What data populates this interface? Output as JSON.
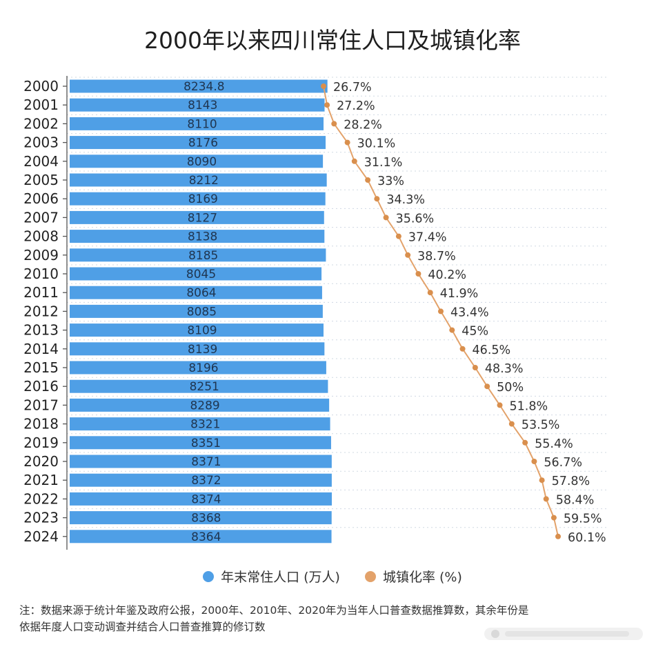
{
  "title": "2000年以来四川常住人口及城镇化率",
  "legend": {
    "population": "年末常住人口 (万人)",
    "urbanization": "城镇化率 (%)"
  },
  "note": {
    "line1": "注：数据来源于统计年鉴及政府公报，2000年、2010年、2020年为当年人口普查数据推算数，其余年份是",
    "line2": "依据年度人口变动调查并结合人口普查推算的修订数"
  },
  "colors": {
    "bar": "#4f9fe6",
    "bar_label": "#1f3550",
    "line": "#e3a26a",
    "dot": "#d98f4d",
    "axis": "#555555",
    "grid": "#cfd8e2"
  },
  "chart_data": {
    "type": "bar",
    "orientation": "horizontal",
    "title": "2000年以来四川常住人口及城镇化率",
    "categories": [
      "2000",
      "2001",
      "2002",
      "2003",
      "2004",
      "2005",
      "2006",
      "2007",
      "2008",
      "2009",
      "2010",
      "2011",
      "2012",
      "2013",
      "2014",
      "2015",
      "2016",
      "2017",
      "2018",
      "2019",
      "2020",
      "2021",
      "2022",
      "2023",
      "2024"
    ],
    "series": [
      {
        "name": "年末常住人口 (万人)",
        "type": "bar",
        "values": [
          8234.8,
          8143,
          8110,
          8176,
          8090,
          8212,
          8169,
          8127,
          8138,
          8185,
          8045,
          8064,
          8085,
          8109,
          8139,
          8196,
          8251,
          8289,
          8321,
          8351,
          8371,
          8372,
          8374,
          8368,
          8364
        ],
        "labels": [
          "8234.8",
          "8143",
          "8110",
          "8176",
          "8090",
          "8212",
          "8169",
          "8127",
          "8138",
          "8185",
          "8045",
          "8064",
          "8085",
          "8109",
          "8139",
          "8196",
          "8251",
          "8289",
          "8321",
          "8351",
          "8371",
          "8372",
          "8374",
          "8368",
          "8364"
        ]
      },
      {
        "name": "城镇化率 (%)",
        "type": "line",
        "values": [
          26.7,
          27.2,
          28.2,
          30.1,
          31.1,
          33,
          34.3,
          35.6,
          37.4,
          38.7,
          40.2,
          41.9,
          43.4,
          45,
          46.5,
          48.3,
          50,
          51.8,
          53.5,
          55.4,
          56.7,
          57.8,
          58.4,
          59.5,
          60.1
        ],
        "labels": [
          "26.7%",
          "27.2%",
          "28.2%",
          "30.1%",
          "31.1%",
          "33%",
          "34.3%",
          "35.6%",
          "37.4%",
          "38.7%",
          "40.2%",
          "41.9%",
          "43.4%",
          "45%",
          "46.5%",
          "48.3%",
          "50%",
          "51.8%",
          "53.5%",
          "55.4%",
          "56.7%",
          "57.8%",
          "58.4%",
          "59.5%",
          "60.1%"
        ]
      }
    ],
    "grid": true,
    "legend_position": "bottom"
  }
}
